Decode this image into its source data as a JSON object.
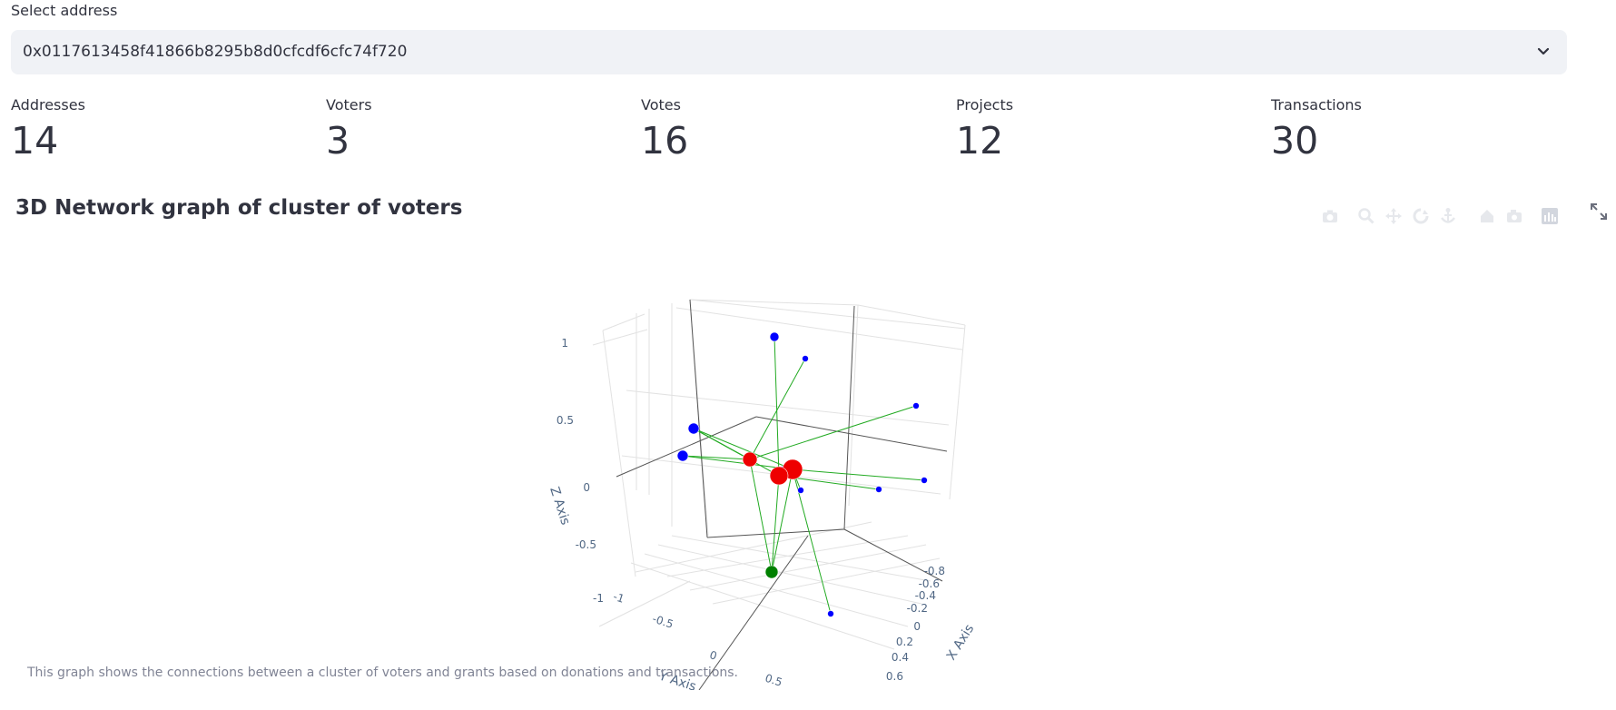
{
  "select": {
    "label": "Select address",
    "value": "0x0117613458f41866b8295b8d0cfcdf6cfc74f720",
    "icon": "chevron-down-icon"
  },
  "metrics": [
    {
      "label": "Addresses",
      "value": "14"
    },
    {
      "label": "Voters",
      "value": "3"
    },
    {
      "label": "Votes",
      "value": "16"
    },
    {
      "label": "Projects",
      "value": "12"
    },
    {
      "label": "Transactions",
      "value": "30"
    }
  ],
  "graph": {
    "title": "3D Network graph of cluster of voters",
    "caption": "This graph shows the connections between a cluster of voters and grants based on donations and transactions.",
    "modebar_icons": [
      "camera-icon",
      "zoom-icon",
      "pan-icon",
      "orbit-icon",
      "turntable-icon",
      "reset-camera-icon",
      "home-icon",
      "bar-chart-icon"
    ],
    "fullscreen_icon": "fullscreen-icon",
    "colors": {
      "project": "#0000ff",
      "voter": "#ee0000",
      "address": "#008000",
      "edge": "#22aa22",
      "axis_text": "#506784"
    }
  },
  "chart_data": {
    "type": "scatter",
    "title": "",
    "axes": {
      "x": {
        "label": "X Axis",
        "ticks": [
          "-0.8",
          "-0.6",
          "-0.4",
          "-0.2",
          "0",
          "0.2",
          "0.4",
          "0.6"
        ]
      },
      "y": {
        "label": "Y Axis",
        "ticks": [
          "-1",
          "-0.5",
          "0",
          "0.5"
        ]
      },
      "z": {
        "label": "Z Axis",
        "ticks": [
          "1",
          "0.5",
          "0",
          "-0.5",
          "-1"
        ]
      }
    },
    "grid": true,
    "legend": "none"
  }
}
